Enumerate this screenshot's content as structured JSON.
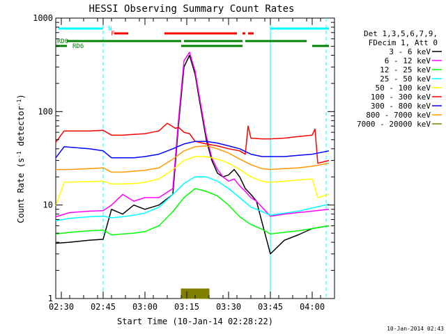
{
  "chart_data": {
    "type": "line",
    "title": "HESSI Observing Summary Count Rates",
    "xlabel": "Start Time (10-Jan-14 02:28:22)",
    "ylabel": "Count Rate (s⁻¹ detector⁻¹)",
    "ylabel_main": "Count Rate (s",
    "ylabel_sup1": "-1",
    "ylabel_mid": " detector",
    "ylabel_sup2": "-1",
    "ylabel_end": ")",
    "y_scale": "log",
    "ylim": [
      1,
      1000
    ],
    "xlim": [
      "02:28",
      "04:08"
    ],
    "x_ticks": [
      "02:30",
      "02:45",
      "03:00",
      "03:15",
      "03:30",
      "03:45",
      "04:00"
    ],
    "y_ticks": [
      "1",
      "10",
      "100",
      "1000"
    ],
    "timestamp": "10-Jan-2014 02:43",
    "legend": {
      "placement": "right",
      "header": [
        "Det 1,3,5,6,7,9,",
        "FDecim 1, Att 0"
      ]
    },
    "series": [
      {
        "name": "3 - 6 keV",
        "color": "#000000",
        "points": [
          [
            "02:28",
            3.9
          ],
          [
            "02:33",
            4.0
          ],
          [
            "02:40",
            4.2
          ],
          [
            "02:45",
            4.3
          ],
          [
            "02:48",
            9
          ],
          [
            "02:52",
            8
          ],
          [
            "02:56",
            10
          ],
          [
            "03:00",
            9
          ],
          [
            "03:05",
            10
          ],
          [
            "03:10",
            13
          ],
          [
            "03:12",
            70
          ],
          [
            "03:14",
            300
          ],
          [
            "03:16",
            400
          ],
          [
            "03:18",
            250
          ],
          [
            "03:20",
            110
          ],
          [
            "03:22",
            50
          ],
          [
            "03:24",
            30
          ],
          [
            "03:26",
            22
          ],
          [
            "03:28",
            20
          ],
          [
            "03:30",
            21
          ],
          [
            "03:32",
            24
          ],
          [
            "03:34",
            20
          ],
          [
            "03:36",
            15
          ],
          [
            "03:38",
            13
          ],
          [
            "03:40",
            11
          ],
          [
            "03:45",
            3.0
          ],
          [
            "03:50",
            4.2
          ],
          [
            "03:55",
            4.8
          ],
          [
            "04:00",
            5.6
          ],
          [
            "04:06",
            6.0
          ]
        ]
      },
      {
        "name": "6 - 12 keV",
        "color": "#ff00ff",
        "points": [
          [
            "02:28",
            7.5
          ],
          [
            "02:33",
            8.3
          ],
          [
            "02:40",
            8.6
          ],
          [
            "02:45",
            8.7
          ],
          [
            "02:48",
            10
          ],
          [
            "02:52",
            13
          ],
          [
            "02:56",
            11
          ],
          [
            "03:00",
            12
          ],
          [
            "03:05",
            12
          ],
          [
            "03:10",
            15
          ],
          [
            "03:12",
            80
          ],
          [
            "03:14",
            350
          ],
          [
            "03:16",
            430
          ],
          [
            "03:18",
            270
          ],
          [
            "03:20",
            120
          ],
          [
            "03:22",
            55
          ],
          [
            "03:24",
            32
          ],
          [
            "03:26",
            24
          ],
          [
            "03:28",
            20
          ],
          [
            "03:30",
            18
          ],
          [
            "03:32",
            19
          ],
          [
            "03:34",
            16
          ],
          [
            "03:36",
            14
          ],
          [
            "03:38",
            12
          ],
          [
            "03:40",
            11
          ],
          [
            "03:45",
            7.6
          ],
          [
            "03:50",
            8.0
          ],
          [
            "03:55",
            8.3
          ],
          [
            "04:00",
            8.6
          ],
          [
            "04:06",
            9.0
          ]
        ]
      },
      {
        "name": "12 - 25 keV",
        "color": "#00ff00",
        "points": [
          [
            "02:28",
            4.9
          ],
          [
            "02:33",
            5.1
          ],
          [
            "02:40",
            5.3
          ],
          [
            "02:45",
            5.4
          ],
          [
            "02:48",
            4.8
          ],
          [
            "02:52",
            4.9
          ],
          [
            "02:56",
            5.0
          ],
          [
            "03:00",
            5.2
          ],
          [
            "03:05",
            6.0
          ],
          [
            "03:10",
            8.5
          ],
          [
            "03:14",
            12
          ],
          [
            "03:18",
            15
          ],
          [
            "03:22",
            14
          ],
          [
            "03:26",
            12.5
          ],
          [
            "03:30",
            10
          ],
          [
            "03:34",
            7.5
          ],
          [
            "03:38",
            6.2
          ],
          [
            "03:42",
            5.5
          ],
          [
            "03:45",
            4.9
          ],
          [
            "03:50",
            5.1
          ],
          [
            "03:55",
            5.3
          ],
          [
            "04:00",
            5.6
          ],
          [
            "04:06",
            6.0
          ]
        ]
      },
      {
        "name": "25 - 50 keV",
        "color": "#00ffff",
        "points": [
          [
            "02:28",
            6.8
          ],
          [
            "02:33",
            7.2
          ],
          [
            "02:40",
            7.5
          ],
          [
            "02:45",
            7.6
          ],
          [
            "02:48",
            7.3
          ],
          [
            "02:52",
            7.5
          ],
          [
            "02:56",
            7.8
          ],
          [
            "03:00",
            8.2
          ],
          [
            "03:05",
            9.5
          ],
          [
            "03:10",
            13
          ],
          [
            "03:14",
            17
          ],
          [
            "03:18",
            20
          ],
          [
            "03:22",
            20
          ],
          [
            "03:26",
            18
          ],
          [
            "03:30",
            15
          ],
          [
            "03:34",
            12
          ],
          [
            "03:38",
            9.5
          ],
          [
            "03:42",
            8.5
          ],
          [
            "03:45",
            7.8
          ],
          [
            "03:50",
            8.2
          ],
          [
            "03:55",
            8.6
          ],
          [
            "04:00",
            9.3
          ],
          [
            "04:06",
            10.2
          ]
        ]
      },
      {
        "name": "50 - 100 keV",
        "color": "#ffff00",
        "points": [
          [
            "02:28",
            9.8
          ],
          [
            "02:31",
            17.5
          ],
          [
            "02:40",
            17.8
          ],
          [
            "02:45",
            18
          ],
          [
            "02:48",
            16.8
          ],
          [
            "02:52",
            16.8
          ],
          [
            "02:56",
            17
          ],
          [
            "03:00",
            17.5
          ],
          [
            "03:05",
            19
          ],
          [
            "03:10",
            24
          ],
          [
            "03:14",
            30
          ],
          [
            "03:18",
            33
          ],
          [
            "03:22",
            33
          ],
          [
            "03:26",
            31
          ],
          [
            "03:30",
            28
          ],
          [
            "03:34",
            24
          ],
          [
            "03:38",
            20
          ],
          [
            "03:42",
            18
          ],
          [
            "03:45",
            17.5
          ],
          [
            "03:50",
            18
          ],
          [
            "03:55",
            18.5
          ],
          [
            "04:00",
            19
          ],
          [
            "04:02",
            12
          ],
          [
            "04:06",
            13
          ]
        ]
      },
      {
        "name": "100 - 300 keV",
        "color": "#ff0000",
        "points": [
          [
            "02:28",
            47
          ],
          [
            "02:31",
            62
          ],
          [
            "02:40",
            62
          ],
          [
            "02:45",
            63
          ],
          [
            "02:48",
            56
          ],
          [
            "02:52",
            56
          ],
          [
            "02:56",
            57
          ],
          [
            "03:00",
            58
          ],
          [
            "03:05",
            62
          ],
          [
            "03:08",
            75
          ],
          [
            "03:11",
            66
          ],
          [
            "03:12",
            68
          ],
          [
            "03:14",
            60
          ],
          [
            "03:16",
            58
          ],
          [
            "03:18",
            48
          ],
          [
            "03:22",
            45
          ],
          [
            "03:26",
            43
          ],
          [
            "03:30",
            40
          ],
          [
            "03:34",
            38
          ],
          [
            "03:36",
            35
          ],
          [
            "03:37",
            70
          ],
          [
            "03:38",
            52
          ],
          [
            "03:42",
            51
          ],
          [
            "03:45",
            51
          ],
          [
            "03:50",
            52
          ],
          [
            "03:55",
            54
          ],
          [
            "04:00",
            56
          ],
          [
            "04:01",
            65
          ],
          [
            "04:02",
            28
          ],
          [
            "04:06",
            30
          ]
        ]
      },
      {
        "name": "300 - 800 keV",
        "color": "#0000ff",
        "points": [
          [
            "02:28",
            32
          ],
          [
            "02:31",
            42
          ],
          [
            "02:40",
            40
          ],
          [
            "02:45",
            38
          ],
          [
            "02:48",
            32
          ],
          [
            "02:52",
            32
          ],
          [
            "02:56",
            32
          ],
          [
            "03:00",
            33
          ],
          [
            "03:05",
            35
          ],
          [
            "03:10",
            40
          ],
          [
            "03:14",
            45
          ],
          [
            "03:18",
            48
          ],
          [
            "03:22",
            48
          ],
          [
            "03:26",
            46
          ],
          [
            "03:30",
            43
          ],
          [
            "03:34",
            40
          ],
          [
            "03:38",
            35
          ],
          [
            "03:42",
            33
          ],
          [
            "03:45",
            33
          ],
          [
            "03:50",
            33
          ],
          [
            "03:55",
            34
          ],
          [
            "04:00",
            35
          ],
          [
            "04:06",
            38
          ]
        ]
      },
      {
        "name": "800 - 7000 keV",
        "color": "#ff9900",
        "points": [
          [
            "02:28",
            24
          ],
          [
            "02:33",
            24
          ],
          [
            "02:40",
            24.5
          ],
          [
            "02:45",
            25
          ],
          [
            "02:48",
            22.5
          ],
          [
            "02:52",
            22.5
          ],
          [
            "02:56",
            23
          ],
          [
            "03:00",
            23.5
          ],
          [
            "03:05",
            25
          ],
          [
            "03:10",
            31
          ],
          [
            "03:14",
            38
          ],
          [
            "03:18",
            42
          ],
          [
            "03:22",
            43
          ],
          [
            "03:26",
            40
          ],
          [
            "03:30",
            36
          ],
          [
            "03:34",
            31
          ],
          [
            "03:38",
            27
          ],
          [
            "03:42",
            24.5
          ],
          [
            "03:45",
            24
          ],
          [
            "03:50",
            24.5
          ],
          [
            "03:55",
            25
          ],
          [
            "04:00",
            26
          ],
          [
            "04:06",
            28
          ]
        ]
      },
      {
        "name": "7000 - 20000 keV",
        "color": "#808000",
        "points": [
          [
            "03:13",
            1.0
          ],
          [
            "03:13",
            1.27
          ],
          [
            "03:23",
            1.27
          ],
          [
            "03:23",
            1.0
          ]
        ]
      }
    ],
    "flags": [
      {
        "label": "N",
        "color": "#00ffff",
        "segments": [
          [
            "02:29",
            "02:45"
          ],
          [
            "03:45",
            "04:06"
          ]
        ]
      },
      {
        "label": "F",
        "color": "#ff0000",
        "segments": [
          [
            "02:49",
            "02:54"
          ],
          [
            "03:07",
            "03:33"
          ],
          [
            "03:35",
            "03:36"
          ],
          [
            "03:37",
            "03:39"
          ]
        ]
      },
      {
        "label": "RD0",
        "color": "#008000",
        "segments": [
          [
            "02:32",
            "03:13"
          ],
          [
            "03:14",
            "03:35"
          ],
          [
            "03:36",
            "03:58"
          ]
        ]
      },
      {
        "label": "RD6",
        "color": "#008000",
        "segments": [
          [
            "02:28",
            "02:32"
          ],
          [
            "03:13",
            "03:35"
          ],
          [
            "04:00",
            "04:06"
          ]
        ]
      }
    ],
    "markers": [
      {
        "time": "02:45",
        "color": "#00ffff",
        "style": "dashed"
      },
      {
        "time": "03:45",
        "color": "#00ffff",
        "style": "solid"
      },
      {
        "time": "04:05",
        "color": "#00ffff",
        "style": "dashed"
      }
    ]
  }
}
